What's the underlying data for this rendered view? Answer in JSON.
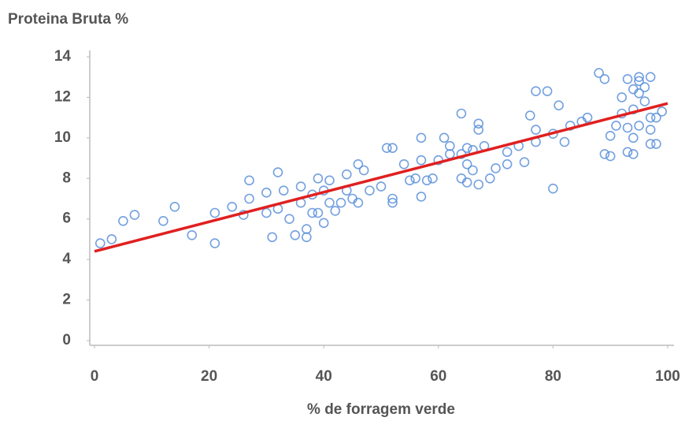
{
  "chart_data": {
    "type": "scatter",
    "title": "Proteina Bruta %",
    "x_label": "% de forragem verde",
    "color": "#5b8fd9",
    "x": [
      1,
      3,
      5,
      7,
      12,
      14,
      17,
      21,
      21,
      24,
      26,
      27,
      27,
      30,
      30,
      31,
      32,
      32,
      33,
      34,
      35,
      36,
      36,
      37,
      37,
      38,
      38,
      39,
      39,
      40,
      40,
      41,
      41,
      42,
      43,
      44,
      44,
      45,
      46,
      46,
      47,
      48,
      50,
      51,
      52,
      52,
      52,
      54,
      55,
      56,
      57,
      57,
      57,
      58,
      59,
      60,
      61,
      62,
      62,
      64,
      64,
      64,
      65,
      65,
      65,
      66,
      66,
      67,
      67,
      67,
      68,
      69,
      70,
      72,
      72,
      74,
      75,
      76,
      77,
      77,
      77,
      79,
      80,
      80,
      81,
      82,
      83,
      85,
      86,
      88,
      89,
      89,
      90,
      90,
      91,
      92,
      92,
      93,
      93,
      93,
      94,
      94,
      94,
      94,
      95,
      95,
      95,
      95,
      96,
      96,
      97,
      97,
      97,
      97,
      98,
      98,
      99
    ],
    "y": [
      4.8,
      5.0,
      5.9,
      6.2,
      5.9,
      6.6,
      5.2,
      6.3,
      4.8,
      6.6,
      6.2,
      7.9,
      7.0,
      7.3,
      6.3,
      5.1,
      8.3,
      6.5,
      7.4,
      6.0,
      5.2,
      7.6,
      6.8,
      5.5,
      5.1,
      7.2,
      6.3,
      8.0,
      6.3,
      5.8,
      7.4,
      7.9,
      6.8,
      6.4,
      6.8,
      7.4,
      8.2,
      7.0,
      8.7,
      6.8,
      8.4,
      7.4,
      7.6,
      9.5,
      9.5,
      7.0,
      6.8,
      8.7,
      7.9,
      8.0,
      10.0,
      7.1,
      8.9,
      7.9,
      8.0,
      8.9,
      10.0,
      9.2,
      9.6,
      9.2,
      8.0,
      11.2,
      9.5,
      7.8,
      8.7,
      9.4,
      8.4,
      10.7,
      10.4,
      7.7,
      9.6,
      8.0,
      8.5,
      9.3,
      8.7,
      9.6,
      8.8,
      11.1,
      10.4,
      9.8,
      12.3,
      12.3,
      10.2,
      7.5,
      11.6,
      9.8,
      10.6,
      10.8,
      11.0,
      13.2,
      12.9,
      9.2,
      9.1,
      10.1,
      10.6,
      11.2,
      12.0,
      9.3,
      12.9,
      10.5,
      12.4,
      11.4,
      9.2,
      10.0,
      12.8,
      13.0,
      10.6,
      12.2,
      12.5,
      11.8,
      10.4,
      13.0,
      11.0,
      9.7,
      9.7,
      11.0,
      11.3
    ],
    "trendline": {
      "x": [
        0,
        100
      ],
      "y": [
        4.4,
        11.7
      ],
      "color": "#e02020"
    },
    "xlim": [
      0,
      100
    ],
    "xticks": [
      0,
      20,
      40,
      60,
      80,
      100
    ],
    "ylim": [
      0,
      14
    ],
    "yticks": [
      0,
      2,
      4,
      6,
      8,
      10,
      12,
      14
    ],
    "grid": false
  }
}
